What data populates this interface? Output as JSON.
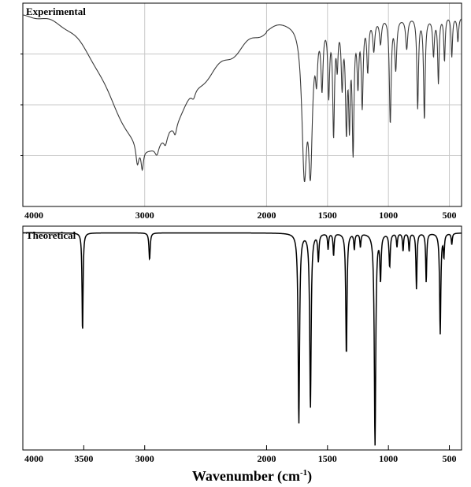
{
  "chart_data": [
    {
      "type": "line",
      "panel_label": "Experimental",
      "xlabel": "",
      "ylabel": "",
      "xlim": [
        4000,
        400
      ],
      "x_reversed": true,
      "grid": true,
      "x_ticks": [
        4000,
        3000,
        2000,
        1500,
        1000,
        500
      ],
      "series": [
        {
          "baseline": 0.94,
          "broad": [
            {
              "x": 3000,
              "depth": 0.36,
              "width": 260
            },
            {
              "x": 3150,
              "depth": 0.18,
              "width": 300
            },
            {
              "x": 2700,
              "depth": 0.2,
              "width": 320
            },
            {
              "x": 2300,
              "depth": 0.1,
              "width": 250
            }
          ],
          "peaks": [
            {
              "x": 3060,
              "depth": 0.1,
              "width": 15
            },
            {
              "x": 3020,
              "depth": 0.1,
              "width": 12
            },
            {
              "x": 2900,
              "depth": 0.05,
              "width": 20
            },
            {
              "x": 2830,
              "depth": 0.05,
              "width": 18
            },
            {
              "x": 2750,
              "depth": 0.05,
              "width": 15
            },
            {
              "x": 2600,
              "depth": 0.04,
              "width": 20
            },
            {
              "x": 1690,
              "depth": 0.72,
              "width": 25
            },
            {
              "x": 1640,
              "depth": 0.65,
              "width": 20
            },
            {
              "x": 1590,
              "depth": 0.2,
              "width": 10
            },
            {
              "x": 1545,
              "depth": 0.3,
              "width": 10
            },
            {
              "x": 1490,
              "depth": 0.35,
              "width": 9
            },
            {
              "x": 1450,
              "depth": 0.55,
              "width": 9
            },
            {
              "x": 1420,
              "depth": 0.2,
              "width": 8
            },
            {
              "x": 1380,
              "depth": 0.3,
              "width": 9
            },
            {
              "x": 1345,
              "depth": 0.5,
              "width": 9
            },
            {
              "x": 1320,
              "depth": 0.45,
              "width": 8
            },
            {
              "x": 1290,
              "depth": 0.62,
              "width": 9
            },
            {
              "x": 1250,
              "depth": 0.3,
              "width": 9
            },
            {
              "x": 1215,
              "depth": 0.42,
              "width": 9
            },
            {
              "x": 1170,
              "depth": 0.25,
              "width": 9
            },
            {
              "x": 1120,
              "depth": 0.15,
              "width": 10
            },
            {
              "x": 1065,
              "depth": 0.12,
              "width": 10
            },
            {
              "x": 985,
              "depth": 0.52,
              "width": 9
            },
            {
              "x": 940,
              "depth": 0.25,
              "width": 10
            },
            {
              "x": 850,
              "depth": 0.15,
              "width": 10
            },
            {
              "x": 760,
              "depth": 0.45,
              "width": 8
            },
            {
              "x": 705,
              "depth": 0.5,
              "width": 8
            },
            {
              "x": 630,
              "depth": 0.18,
              "width": 8
            },
            {
              "x": 590,
              "depth": 0.32,
              "width": 7
            },
            {
              "x": 540,
              "depth": 0.22,
              "width": 7
            },
            {
              "x": 480,
              "depth": 0.2,
              "width": 7
            },
            {
              "x": 430,
              "depth": 0.12,
              "width": 7
            }
          ]
        }
      ]
    },
    {
      "type": "line",
      "panel_label": "Theoretical",
      "xlabel": "Wavenumber (cm-1)",
      "xlabel_main": "Wavenumber (cm",
      "xlabel_sup": "-1",
      "xlabel_end": ")",
      "ylabel": "",
      "xlim": [
        4000,
        400
      ],
      "x_reversed": true,
      "grid": false,
      "x_ticks": [
        4000,
        3500,
        3000,
        2000,
        1500,
        1000,
        500
      ],
      "series": [
        {
          "baseline": 0.97,
          "broad": [],
          "peaks": [
            {
              "x": 3510,
              "depth": 0.45,
              "width": 5
            },
            {
              "x": 2960,
              "depth": 0.12,
              "width": 6
            },
            {
              "x": 1735,
              "depth": 0.85,
              "width": 7
            },
            {
              "x": 1640,
              "depth": 0.78,
              "width": 7
            },
            {
              "x": 1575,
              "depth": 0.12,
              "width": 6
            },
            {
              "x": 1495,
              "depth": 0.07,
              "width": 5
            },
            {
              "x": 1450,
              "depth": 0.1,
              "width": 5
            },
            {
              "x": 1345,
              "depth": 0.55,
              "width": 6
            },
            {
              "x": 1280,
              "depth": 0.07,
              "width": 5
            },
            {
              "x": 1230,
              "depth": 0.06,
              "width": 5
            },
            {
              "x": 1110,
              "depth": 0.95,
              "width": 7
            },
            {
              "x": 1065,
              "depth": 0.2,
              "width": 6
            },
            {
              "x": 990,
              "depth": 0.15,
              "width": 6
            },
            {
              "x": 930,
              "depth": 0.06,
              "width": 5
            },
            {
              "x": 880,
              "depth": 0.08,
              "width": 5
            },
            {
              "x": 830,
              "depth": 0.08,
              "width": 5
            },
            {
              "x": 770,
              "depth": 0.25,
              "width": 5
            },
            {
              "x": 690,
              "depth": 0.22,
              "width": 5
            },
            {
              "x": 575,
              "depth": 0.45,
              "width": 6
            },
            {
              "x": 545,
              "depth": 0.1,
              "width": 5
            },
            {
              "x": 480,
              "depth": 0.05,
              "width": 5
            }
          ]
        }
      ]
    }
  ]
}
